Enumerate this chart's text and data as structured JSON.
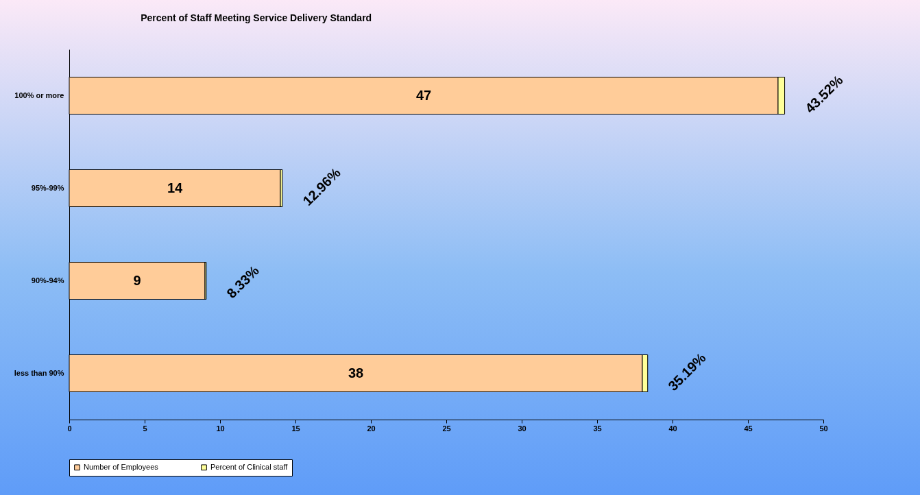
{
  "chart_data": {
    "type": "bar",
    "orientation": "horizontal",
    "stacked": true,
    "title": "Percent of Staff Meeting Service Delivery Standard",
    "categories": [
      "100% or more",
      "95%-99%",
      "90%-94%",
      "less than 90%"
    ],
    "series": [
      {
        "name": "Number of Employees",
        "color": "#ffcc99",
        "values": [
          47,
          14,
          9,
          38
        ],
        "value_labels": [
          "47",
          "14",
          "9",
          "38"
        ]
      },
      {
        "name": "Percent of Clinical staff",
        "color": "#ffff99",
        "values": [
          0.4352,
          0.1296,
          0.0833,
          0.3519
        ],
        "value_labels": [
          "43.52%",
          "12.96%",
          "8.33%",
          "35.19%"
        ]
      }
    ],
    "xlim": [
      0,
      50
    ],
    "xticks": [
      0,
      5,
      10,
      15,
      20,
      25,
      30,
      35,
      40,
      45,
      50
    ],
    "grid": false,
    "legend": "bottom"
  }
}
